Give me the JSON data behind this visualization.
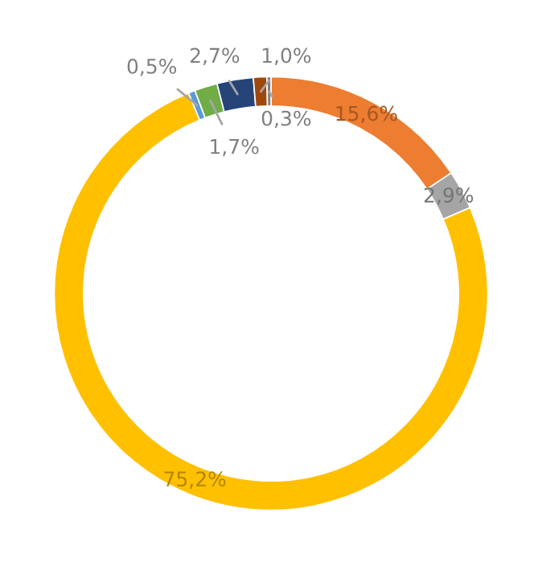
{
  "chart_data": {
    "type": "donut",
    "categories": [
      null,
      null,
      null,
      null,
      null,
      null,
      null,
      null
    ],
    "values": [
      15.6,
      2.9,
      75.2,
      0.5,
      1.7,
      2.7,
      1.0,
      0.3
    ],
    "colors": [
      "#ed7d31",
      "#a5a5a5",
      "#ffc000",
      "#5b9bd5",
      "#70ad47",
      "#264478",
      "#9e480e",
      "#7f7f7f"
    ],
    "value_labels": [
      "15,6%",
      "2,9%",
      "75,2%",
      "0,5%",
      "1,7%",
      "2,7%",
      "1,0%",
      "0,3%"
    ]
  }
}
